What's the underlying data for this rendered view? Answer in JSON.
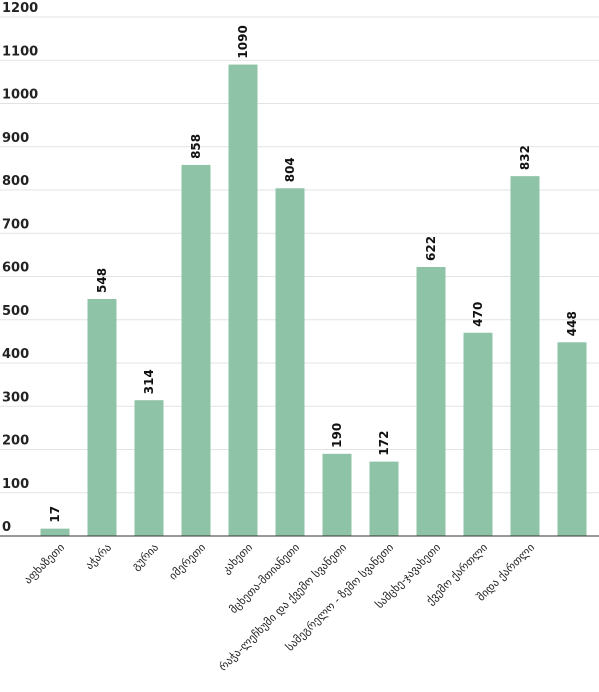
{
  "chart_data": {
    "type": "bar",
    "categories": [
      "აფხაზეთი",
      "აჭარა",
      "გურია",
      "იმერეთი",
      "კახეთი",
      "მცხეთა-მთიანეთი",
      "რაჭა-ლეჩხუმი და ქვემო სვანეთი",
      "სამეგრელო - ზემო სვანეთი",
      "სამცხე-ჯავახეთი",
      "ქვემო ქართლი",
      "შიდა ქართლი",
      ""
    ],
    "values": [
      17,
      548,
      314,
      858,
      1090,
      804,
      190,
      172,
      622,
      470,
      832,
      448
    ],
    "ylim": [
      0,
      1200
    ],
    "yticks": [
      0,
      100,
      200,
      300,
      400,
      500,
      600,
      700,
      800,
      900,
      1000,
      1100,
      1200
    ],
    "grid": true,
    "color": "#8fc3a7"
  }
}
